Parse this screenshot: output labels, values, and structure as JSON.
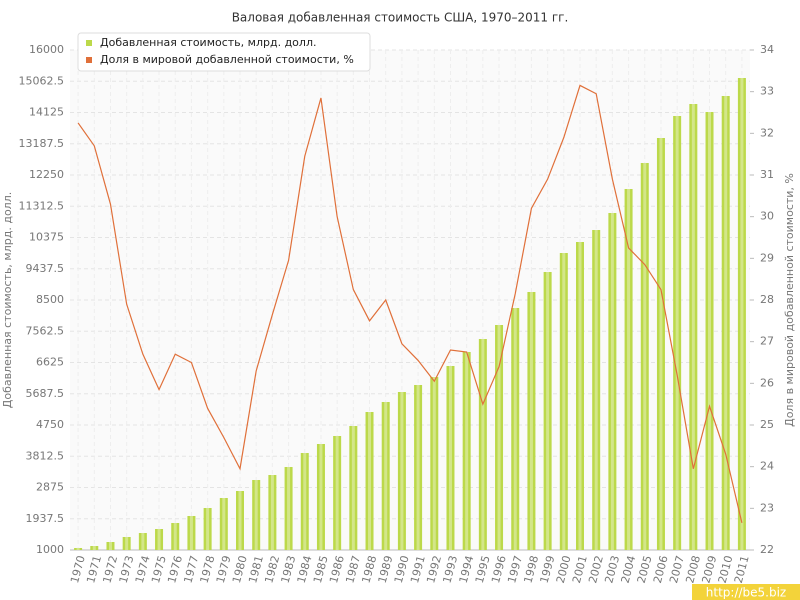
{
  "chart_data": {
    "type": "bar_line",
    "title": "Валовая добавленная стоимость США, 1970–2011 гг.",
    "ylabel": "Добавленная стоимость, млрд. долл.",
    "y2label": "Доля в мировой добавленной стоимости, %",
    "watermark": "http://be5.biz",
    "categories": [
      "1970",
      "1971",
      "1972",
      "1973",
      "1974",
      "1975",
      "1976",
      "1977",
      "1978",
      "1979",
      "1980",
      "1981",
      "1982",
      "1983",
      "1984",
      "1985",
      "1986",
      "1987",
      "1988",
      "1989",
      "1990",
      "1991",
      "1992",
      "1993",
      "1994",
      "1995",
      "1996",
      "1997",
      "1998",
      "1999",
      "2000",
      "2001",
      "2002",
      "2003",
      "2004",
      "2005",
      "2006",
      "2007",
      "2008",
      "2009",
      "2010",
      "2011"
    ],
    "series": [
      {
        "name": "Добавленная стоимость, млрд. долл.",
        "color": "#bcd94a",
        "type": "bar",
        "values": [
          1060,
          1120,
          1240,
          1390,
          1510,
          1630,
          1810,
          2020,
          2260,
          2560,
          2770,
          3100,
          3250,
          3490,
          3910,
          4180,
          4420,
          4720,
          5140,
          5440,
          5740,
          5950,
          6190,
          6520,
          6940,
          7330,
          7750,
          8260,
          8740,
          9340,
          9910,
          10240,
          10600,
          11110,
          11830,
          12610,
          13360,
          14020,
          14380,
          14140,
          14620,
          15160
        ]
      },
      {
        "name": "Доля в мировой добавленной стоимости, %",
        "color": "#e0703a",
        "type": "line",
        "axis": "y2",
        "values": [
          32.25,
          31.7,
          30.3,
          27.9,
          26.7,
          25.85,
          26.7,
          26.5,
          25.4,
          24.7,
          23.95,
          26.3,
          27.65,
          28.95,
          31.45,
          32.85,
          30.0,
          28.25,
          27.5,
          28.0,
          26.95,
          26.55,
          26.05,
          26.8,
          26.75,
          25.5,
          26.4,
          28.15,
          30.2,
          30.9,
          31.9,
          33.15,
          32.95,
          30.9,
          29.25,
          28.85,
          28.25,
          26.2,
          23.95,
          25.45,
          24.3,
          22.65
        ]
      }
    ],
    "ylim": [
      1000,
      16000
    ],
    "yticks": [
      1000,
      1937.5,
      2875,
      3812.5,
      4750,
      5687.5,
      6625,
      7562.5,
      8500,
      9437.5,
      10375,
      11312.5,
      12250,
      13187.5,
      14125,
      15062.5,
      16000
    ],
    "y2lim": [
      22,
      34
    ],
    "y2ticks": [
      22,
      23,
      24,
      25,
      26,
      27,
      28,
      29,
      30,
      31,
      32,
      33,
      34
    ],
    "grid": true,
    "legend": "top-left"
  }
}
